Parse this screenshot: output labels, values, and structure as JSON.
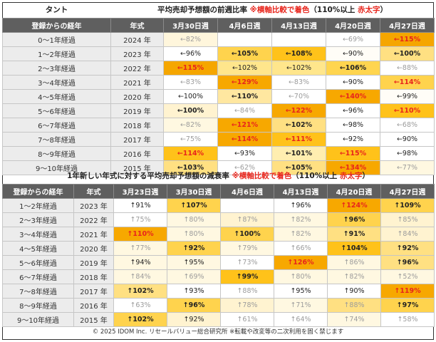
{
  "top": {
    "category": "タント",
    "title_main": "平均売却予想額の前週比率 ",
    "title_red": "※横軸比較で着色",
    "title_mid": "（110%以上 ",
    "title_red2": "赤太字",
    "title_end": "）",
    "header": {
      "elapsed": "登録からの経年",
      "year": "年式",
      "weeks": [
        "3月30日週",
        "4月6日週",
        "4月13日週",
        "4月20日週",
        "4月27日週"
      ]
    },
    "rows": [
      {
        "elapsed": "0～1年経過",
        "year": "2024 年",
        "cells": [
          {
            "t": "←82%",
            "bg": "#fff6dc",
            "s": "fade"
          },
          {
            "t": "",
            "bg": "#ffffff",
            "s": ""
          },
          {
            "t": "",
            "bg": "#ffffff",
            "s": ""
          },
          {
            "t": "←69%",
            "bg": "#ffffff",
            "s": "fade"
          },
          {
            "t": "←115%",
            "bg": "#f5a600",
            "s": "hi"
          }
        ]
      },
      {
        "elapsed": "1～2年経過",
        "year": "2023 年",
        "cells": [
          {
            "t": "←96%",
            "bg": "#ffffff",
            "s": ""
          },
          {
            "t": "←105%",
            "bg": "#ffd34d",
            "s": "em"
          },
          {
            "t": "←108%",
            "bg": "#ffc21a",
            "s": "em"
          },
          {
            "t": "←90%",
            "bg": "#fffdf7",
            "s": ""
          },
          {
            "t": "←100%",
            "bg": "#ffe082",
            "s": "em"
          }
        ]
      },
      {
        "elapsed": "2～3年経過",
        "year": "2022 年",
        "cells": [
          {
            "t": "←115%",
            "bg": "#f5a600",
            "s": "hi"
          },
          {
            "t": "←102%",
            "bg": "#ffe68c",
            "s": ""
          },
          {
            "t": "←102%",
            "bg": "#ffe68c",
            "s": ""
          },
          {
            "t": "←106%",
            "bg": "#ffd54f",
            "s": "em"
          },
          {
            "t": "←88%",
            "bg": "#ffffff",
            "s": "fade"
          }
        ]
      },
      {
        "elapsed": "3～4年経過",
        "year": "2021 年",
        "cells": [
          {
            "t": "←83%",
            "bg": "#ffffff",
            "s": "fade"
          },
          {
            "t": "←129%",
            "bg": "#f7a800",
            "s": "hi"
          },
          {
            "t": "←83%",
            "bg": "#ffffff",
            "s": "fade"
          },
          {
            "t": "←90%",
            "bg": "#ffffff",
            "s": ""
          },
          {
            "t": "←114%",
            "bg": "#ffd34d",
            "s": "hi"
          }
        ]
      },
      {
        "elapsed": "4～5年経過",
        "year": "2020 年",
        "cells": [
          {
            "t": "←100%",
            "bg": "#ffffff",
            "s": ""
          },
          {
            "t": "←110%",
            "bg": "#ffe7a0",
            "s": "em"
          },
          {
            "t": "←70%",
            "bg": "#ffffff",
            "s": "fade"
          },
          {
            "t": "←140%",
            "bg": "#f7a800",
            "s": "hi"
          },
          {
            "t": "←99%",
            "bg": "#fffdf7",
            "s": ""
          }
        ]
      },
      {
        "elapsed": "5～6年経過",
        "year": "2019 年",
        "cells": [
          {
            "t": "←100%",
            "bg": "#fff3d0",
            "s": "em"
          },
          {
            "t": "←84%",
            "bg": "#ffffff",
            "s": "fade"
          },
          {
            "t": "←122%",
            "bg": "#f7a800",
            "s": "hi"
          },
          {
            "t": "←96%",
            "bg": "#ffffff",
            "s": ""
          },
          {
            "t": "←110%",
            "bg": "#ffc21a",
            "s": "hi"
          }
        ]
      },
      {
        "elapsed": "6～7年経過",
        "year": "2018 年",
        "cells": [
          {
            "t": "←82%",
            "bg": "#fff8e1",
            "s": "fade"
          },
          {
            "t": "←121%",
            "bg": "#f7a800",
            "s": "hi"
          },
          {
            "t": "←102%",
            "bg": "#ffe082",
            "s": "em"
          },
          {
            "t": "←98%",
            "bg": "#ffffff",
            "s": ""
          },
          {
            "t": "←68%",
            "bg": "#ffffff",
            "s": "fade"
          }
        ]
      },
      {
        "elapsed": "7～8年経過",
        "year": "2017 年",
        "cells": [
          {
            "t": "←75%",
            "bg": "#ffffff",
            "s": "fade"
          },
          {
            "t": "←114%",
            "bg": "#f7a800",
            "s": "hi"
          },
          {
            "t": "←111%",
            "bg": "#ffc21a",
            "s": "hi"
          },
          {
            "t": "←92%",
            "bg": "#ffffff",
            "s": ""
          },
          {
            "t": "←90%",
            "bg": "#ffffff",
            "s": ""
          }
        ]
      },
      {
        "elapsed": "8～9年経過",
        "year": "2016 年",
        "cells": [
          {
            "t": "←114%",
            "bg": "#ffc21a",
            "s": "hi"
          },
          {
            "t": "←93%",
            "bg": "#ffffff",
            "s": ""
          },
          {
            "t": "←101%",
            "bg": "#ffeeb0",
            "s": "em"
          },
          {
            "t": "←115%",
            "bg": "#ffc21a",
            "s": "hi"
          },
          {
            "t": "←98%",
            "bg": "#ffffff",
            "s": ""
          }
        ]
      },
      {
        "elapsed": "9～10年経過",
        "year": "2015 年",
        "cells": [
          {
            "t": "←103%",
            "bg": "#ffe082",
            "s": "em"
          },
          {
            "t": "←62%",
            "bg": "#ffffff",
            "s": "fade"
          },
          {
            "t": "←105%",
            "bg": "#ffe082",
            "s": "em"
          },
          {
            "t": "←134%",
            "bg": "#f7a800",
            "s": "hi"
          },
          {
            "t": "←77%",
            "bg": "#fff8e1",
            "s": "fade"
          }
        ]
      }
    ]
  },
  "bottom": {
    "title_main": "1年新しい年式に対する平均売却予想額の減衰率 ",
    "title_red": "※横軸比較で着色",
    "title_mid": "（110%以上 ",
    "title_red2": "赤太字",
    "title_end": "）",
    "header": {
      "elapsed": "登録からの経年",
      "year": "年式",
      "weeks": [
        "3月23日週",
        "3月30日週",
        "4月6日週",
        "4月13日週",
        "4月20日週",
        "4月27日週"
      ]
    },
    "rows": [
      {
        "elapsed": "1～2年経過",
        "year": "2023 年",
        "cells": [
          {
            "t": "↑91%",
            "bg": "#ffffff",
            "s": ""
          },
          {
            "t": "↑107%",
            "bg": "#ffd34d",
            "s": "em"
          },
          {
            "t": "",
            "bg": "#ffffff",
            "s": ""
          },
          {
            "t": "↑96%",
            "bg": "#ffffff",
            "s": ""
          },
          {
            "t": "↑124%",
            "bg": "#f7a800",
            "s": "hi"
          },
          {
            "t": "↑109%",
            "bg": "#ffd34d",
            "s": "em"
          }
        ]
      },
      {
        "elapsed": "2～3年経過",
        "year": "2022 年",
        "cells": [
          {
            "t": "↑75%",
            "bg": "#ffffff",
            "s": "fade"
          },
          {
            "t": "↑80%",
            "bg": "#fff8e1",
            "s": "fade"
          },
          {
            "t": "↑87%",
            "bg": "#fff3d0",
            "s": "fade"
          },
          {
            "t": "↑82%",
            "bg": "#fff8e1",
            "s": "fade"
          },
          {
            "t": "↑96%",
            "bg": "#ffd34d",
            "s": "em"
          },
          {
            "t": "↑85%",
            "bg": "#fff3d0",
            "s": "fade"
          }
        ]
      },
      {
        "elapsed": "3～4年経過",
        "year": "2021 年",
        "cells": [
          {
            "t": "↑110%",
            "bg": "#f7a800",
            "s": "hi"
          },
          {
            "t": "↑80%",
            "bg": "#fff8e1",
            "s": "fade"
          },
          {
            "t": "↑100%",
            "bg": "#ffd34d",
            "s": "em"
          },
          {
            "t": "↑82%",
            "bg": "#fff8e1",
            "s": "fade"
          },
          {
            "t": "↑91%",
            "bg": "#ffe082",
            "s": "em"
          },
          {
            "t": "↑84%",
            "bg": "#fff3d0",
            "s": "fade"
          }
        ]
      },
      {
        "elapsed": "4～5年経過",
        "year": "2020 年",
        "cells": [
          {
            "t": "↑77%",
            "bg": "#fff8e1",
            "s": "fade"
          },
          {
            "t": "↑92%",
            "bg": "#ffd34d",
            "s": "em"
          },
          {
            "t": "↑79%",
            "bg": "#fff8e1",
            "s": "fade"
          },
          {
            "t": "↑66%",
            "bg": "#ffffff",
            "s": "fade"
          },
          {
            "t": "↑104%",
            "bg": "#ffc21a",
            "s": "em"
          },
          {
            "t": "↑92%",
            "bg": "#ffe082",
            "s": "em"
          }
        ]
      },
      {
        "elapsed": "5～6年経過",
        "year": "2019 年",
        "cells": [
          {
            "t": "↑94%",
            "bg": "#fff8e1",
            "s": ""
          },
          {
            "t": "↑95%",
            "bg": "#fff8e1",
            "s": ""
          },
          {
            "t": "↑73%",
            "bg": "#ffffff",
            "s": "fade"
          },
          {
            "t": "↑126%",
            "bg": "#f7a800",
            "s": "hi"
          },
          {
            "t": "↑86%",
            "bg": "#fff8e1",
            "s": "fade"
          },
          {
            "t": "↑96%",
            "bg": "#ffe082",
            "s": "em"
          }
        ]
      },
      {
        "elapsed": "6～7年経過",
        "year": "2018 年",
        "cells": [
          {
            "t": "↑84%",
            "bg": "#fff8e1",
            "s": "fade"
          },
          {
            "t": "↑69%",
            "bg": "#fff8e1",
            "s": "fade"
          },
          {
            "t": "↑99%",
            "bg": "#ffc21a",
            "s": "em"
          },
          {
            "t": "↑80%",
            "bg": "#fff8e1",
            "s": "fade"
          },
          {
            "t": "↑82%",
            "bg": "#fff8e1",
            "s": "fade"
          },
          {
            "t": "↑52%",
            "bg": "#fff8e1",
            "s": "fade"
          }
        ]
      },
      {
        "elapsed": "7～8年経過",
        "year": "2017 年",
        "cells": [
          {
            "t": "↑102%",
            "bg": "#ffe082",
            "s": "em"
          },
          {
            "t": "↑93%",
            "bg": "#ffffff",
            "s": ""
          },
          {
            "t": "↑88%",
            "bg": "#ffffff",
            "s": "fade"
          },
          {
            "t": "↑95%",
            "bg": "#ffffff",
            "s": ""
          },
          {
            "t": "↑90%",
            "bg": "#ffffff",
            "s": ""
          },
          {
            "t": "↑119%",
            "bg": "#f7a800",
            "s": "hi"
          }
        ]
      },
      {
        "elapsed": "8～9年経過",
        "year": "2016 年",
        "cells": [
          {
            "t": "↑63%",
            "bg": "#ffffff",
            "s": "fade"
          },
          {
            "t": "↑96%",
            "bg": "#ffd34d",
            "s": "em"
          },
          {
            "t": "↑78%",
            "bg": "#fff3d0",
            "s": "fade"
          },
          {
            "t": "↑71%",
            "bg": "#fff8e1",
            "s": "fade"
          },
          {
            "t": "↑88%",
            "bg": "#ffe082",
            "s": "fade"
          },
          {
            "t": "↑97%",
            "bg": "#ffd34d",
            "s": "em"
          }
        ]
      },
      {
        "elapsed": "9～10年経過",
        "year": "2015 年",
        "cells": [
          {
            "t": "↑102%",
            "bg": "#ffd34d",
            "s": "em"
          },
          {
            "t": "↑92%",
            "bg": "#fff3d0",
            "s": ""
          },
          {
            "t": "↑61%",
            "bg": "#ffffff",
            "s": "fade"
          },
          {
            "t": "↑64%",
            "bg": "#ffffff",
            "s": "fade"
          },
          {
            "t": "↑74%",
            "bg": "#fff8e1",
            "s": "fade"
          },
          {
            "t": "↑58%",
            "bg": "#ffffff",
            "s": "fade"
          }
        ]
      }
    ]
  },
  "footer": "© 2025 IDOM Inc. リセールバリュー総合研究所 ※転載や改変等の二次利用を固く禁じます"
}
